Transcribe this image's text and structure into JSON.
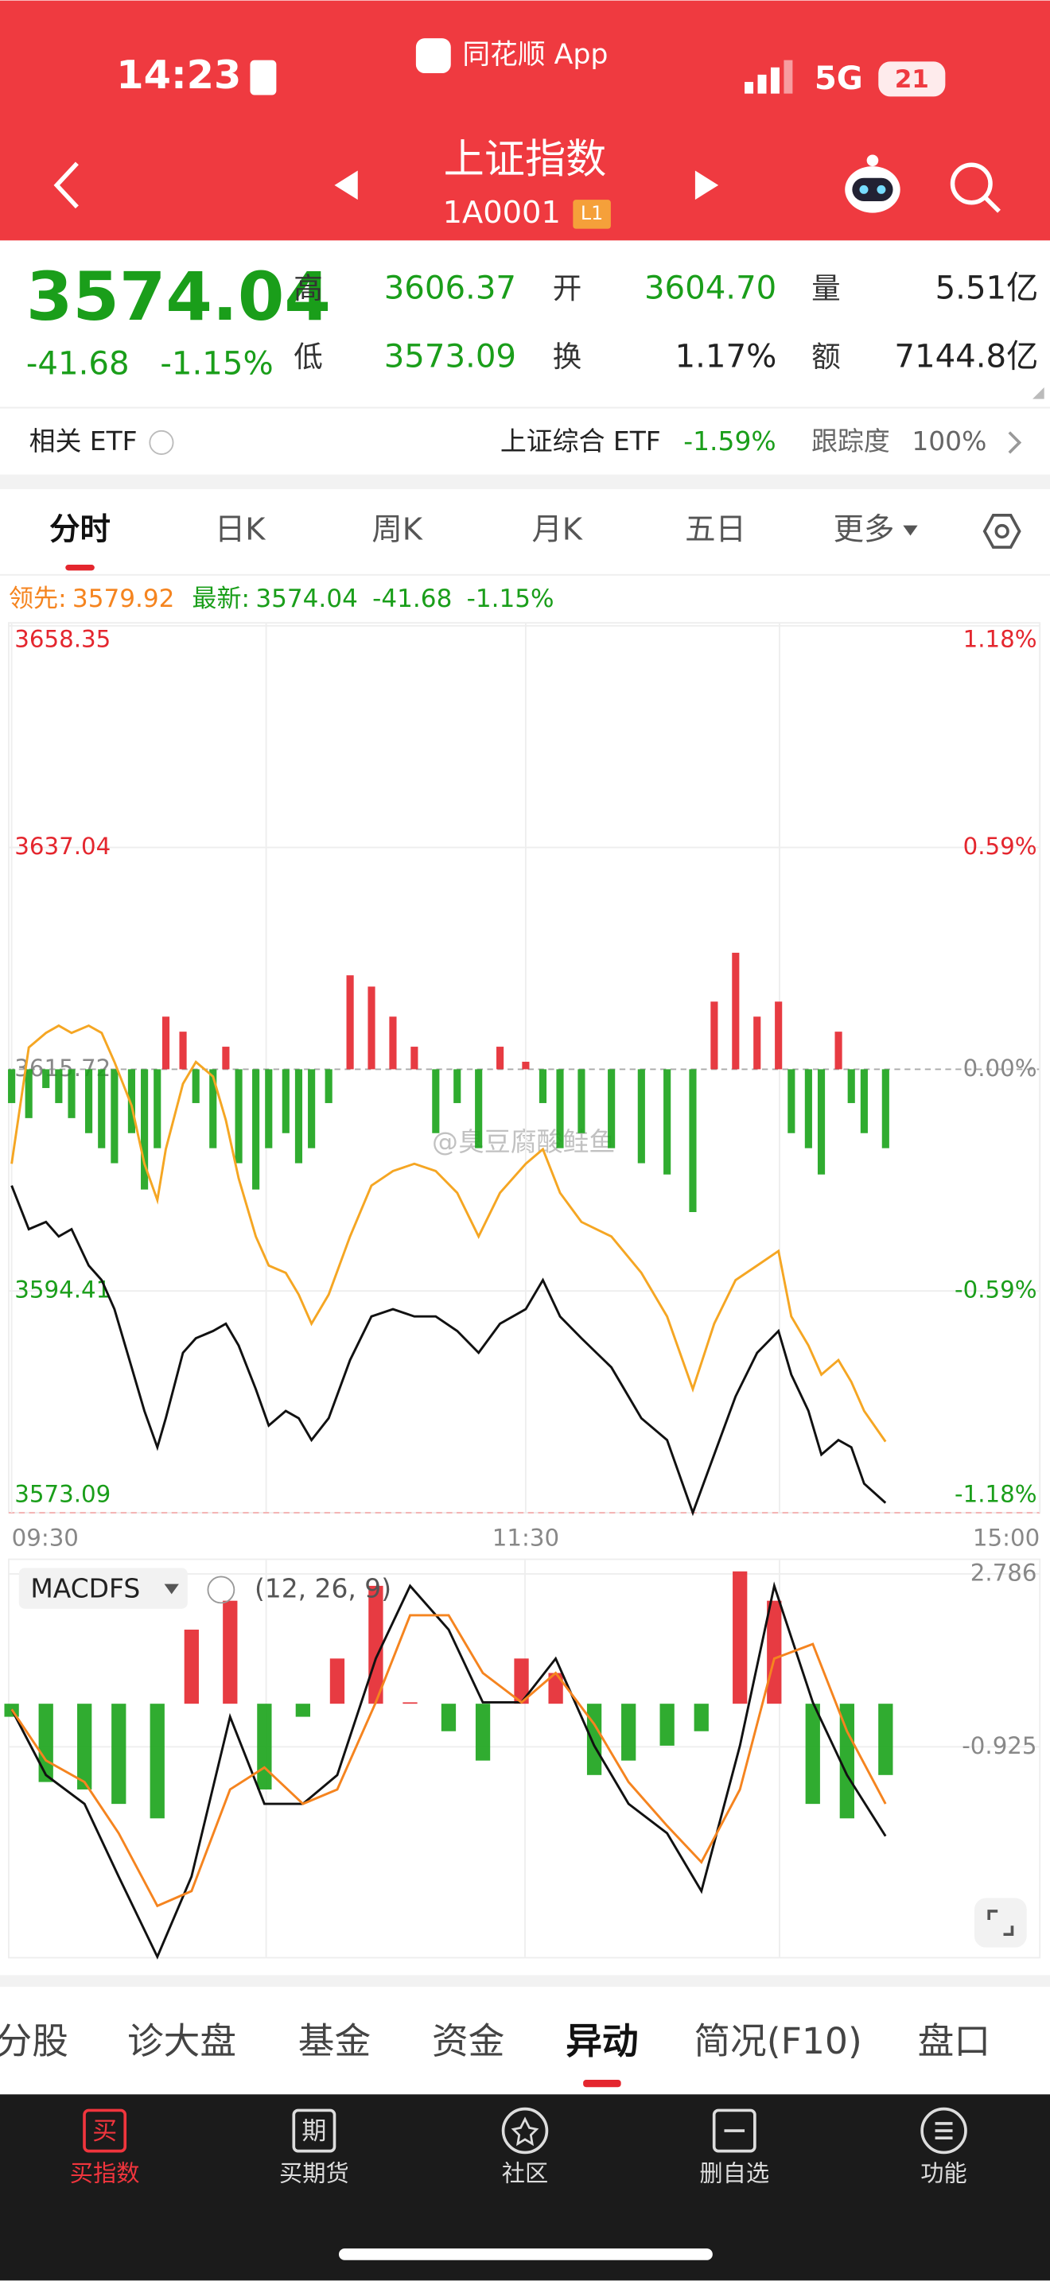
{
  "status": {
    "time": "14:23",
    "app": "同花顺 App",
    "network": "5G",
    "battery": "21"
  },
  "header": {
    "title": "上证指数",
    "code": "1A0001",
    "badge": "L1"
  },
  "quote": {
    "price": "3574.04",
    "change": "-41.68",
    "pct": "-1.15%",
    "color": "#1a9e1a",
    "fields": [
      {
        "label": "高",
        "value": "3606.37",
        "color": "#1a9e1a"
      },
      {
        "label": "开",
        "value": "3604.70",
        "color": "#1a9e1a"
      },
      {
        "label": "量",
        "value": "5.51亿",
        "color": "#222222"
      },
      {
        "label": "低",
        "value": "3573.09",
        "color": "#1a9e1a"
      },
      {
        "label": "换",
        "value": "1.17%",
        "color": "#222222"
      },
      {
        "label": "额",
        "value": "7144.8亿",
        "color": "#222222"
      }
    ]
  },
  "etf": {
    "label": "相关 ETF",
    "name": "上证综合 ETF",
    "pct": "-1.59%",
    "track_label": "跟踪度",
    "track": "100%"
  },
  "tabs": {
    "items": [
      "分时",
      "日K",
      "周K",
      "月K",
      "五日",
      "更多"
    ],
    "active": 0
  },
  "legend": {
    "lead_label": "领先:",
    "lead": "3579.92",
    "latest_label": "最新:",
    "latest": "3574.04",
    "change": "-41.68",
    "pct": "-1.15%"
  },
  "chart_data": [
    {
      "type": "line",
      "x": [
        0,
        4,
        8,
        11,
        14,
        18,
        21,
        24,
        28,
        31,
        34,
        36,
        40,
        43,
        47,
        50,
        53,
        57,
        60,
        64,
        67,
        70,
        74,
        79,
        84,
        89,
        94,
        99,
        104,
        109,
        114,
        120,
        124,
        128,
        133,
        140,
        147,
        153,
        159,
        164,
        169,
        174,
        179,
        182,
        186,
        189,
        193,
        196,
        199,
        204
      ],
      "xlim": [
        0,
        240
      ],
      "xticks": [
        {
          "value": 0,
          "label": "09:30"
        },
        {
          "value": 120,
          "label": "11:30"
        },
        {
          "value": 240,
          "label": "15:00"
        }
      ],
      "ylim": [
        3573.09,
        3658.35
      ],
      "yticks": [
        3658.35,
        3637.04,
        3615.72,
        3594.41,
        3573.09
      ],
      "y2lim": [
        -1.18,
        1.18
      ],
      "y2ticks": [
        {
          "value": 1.18,
          "label": "1.18%"
        },
        {
          "value": 0.59,
          "label": "0.59%"
        },
        {
          "value": 0,
          "label": "0.00%"
        },
        {
          "value": -0.59,
          "label": "-0.59%"
        },
        {
          "value": -1.18,
          "label": "-1.18%"
        }
      ],
      "series": [
        {
          "type": "bar",
          "axis": "y2",
          "up_color": "#e4262e",
          "down_color": "#1aa31a",
          "values": [
            -0.09,
            -0.13,
            -0.05,
            -0.09,
            -0.13,
            -0.17,
            -0.21,
            -0.25,
            -0.17,
            -0.32,
            -0.21,
            0.14,
            0.1,
            -0.09,
            -0.21,
            0.06,
            -0.25,
            -0.32,
            -0.21,
            -0.17,
            -0.25,
            -0.21,
            -0.09,
            0.25,
            0.22,
            0.14,
            0.06,
            -0.17,
            -0.09,
            -0.21,
            0.06,
            0.02,
            -0.09,
            -0.21,
            -0.17,
            -0.21,
            -0.25,
            -0.28,
            -0.38,
            0.18,
            0.31,
            0.14,
            0.18,
            -0.17,
            -0.21,
            -0.28,
            0.1,
            -0.09,
            -0.17,
            -0.21
          ]
        },
        {
          "color": "#f5a623",
          "values": [
            3606.64,
            3617.82,
            3619.21,
            3619.91,
            3619.21,
            3619.91,
            3619.21,
            3616.42,
            3612.23,
            3606.64,
            3603.14,
            3608.03,
            3614.32,
            3616.42,
            3615.02,
            3610.83,
            3605.24,
            3599.65,
            3596.85,
            3596.15,
            3594.06,
            3591.26,
            3594.06,
            3599.65,
            3604.54,
            3605.94,
            3606.64,
            3605.94,
            3603.84,
            3599.65,
            3603.84,
            3606.64,
            3608.03,
            3603.84,
            3601.04,
            3599.65,
            3596.15,
            3591.96,
            3584.97,
            3591.26,
            3595.45,
            3596.85,
            3598.25,
            3591.96,
            3589.16,
            3586.37,
            3587.77,
            3585.67,
            3582.87,
            3579.92
          ]
        },
        {
          "color": "#111111",
          "values": [
            3604.54,
            3600.35,
            3601.04,
            3599.65,
            3600.35,
            3596.85,
            3595.45,
            3592.66,
            3587.07,
            3582.87,
            3579.38,
            3582.18,
            3588.46,
            3589.86,
            3590.56,
            3591.26,
            3589.16,
            3584.97,
            3581.48,
            3582.87,
            3582.18,
            3580.08,
            3582.18,
            3587.77,
            3591.96,
            3592.66,
            3591.96,
            3591.96,
            3590.56,
            3588.46,
            3591.26,
            3592.66,
            3595.45,
            3591.96,
            3589.86,
            3587.07,
            3582.18,
            3580.08,
            3573.09,
            3578.68,
            3584.27,
            3588.46,
            3590.56,
            3586.37,
            3582.87,
            3578.68,
            3580.08,
            3579.38,
            3575.89,
            3574.04
          ]
        }
      ]
    },
    {
      "type": "line",
      "title": "MACDFS",
      "params": "(12, 26, 9)",
      "x": [
        0,
        8,
        17,
        25,
        34,
        42,
        51,
        59,
        68,
        76,
        85,
        93,
        102,
        110,
        119,
        127,
        136,
        144,
        153,
        161,
        170,
        178,
        187,
        195,
        204
      ],
      "xlim": [
        0,
        240
      ],
      "ylim": [
        -5.45,
        3.1
      ],
      "yticks": [
        2.786,
        -0.925
      ],
      "series": [
        {
          "type": "bar",
          "up_color": "#e4262e",
          "down_color": "#1aa31a",
          "values": [
            -0.28,
            -1.68,
            -1.84,
            -2.15,
            -2.46,
            1.59,
            2.21,
            -1.84,
            -0.28,
            0.97,
            2.53,
            0.03,
            -0.59,
            -1.22,
            0.97,
            0.66,
            -1.53,
            -1.22,
            -0.9,
            -0.59,
            2.84,
            2.21,
            -2.15,
            -2.46,
            -1.53
          ]
        },
        {
          "color": "#111111",
          "values": [
            -0.12,
            -1.53,
            -2.15,
            -3.71,
            -5.43,
            -3.71,
            -0.28,
            -2.15,
            -2.15,
            -1.53,
            0.97,
            2.53,
            1.59,
            0.03,
            0.03,
            0.97,
            -0.9,
            -2.15,
            -2.78,
            -4.02,
            -0.9,
            2.53,
            0.03,
            -1.53,
            -2.84
          ]
        },
        {
          "color": "#f5841f",
          "values": [
            -0.12,
            -1.22,
            -1.68,
            -2.78,
            -4.34,
            -4.02,
            -1.84,
            -1.37,
            -2.15,
            -1.84,
            0.03,
            1.9,
            1.9,
            0.66,
            0.03,
            0.66,
            -0.44,
            -1.68,
            -2.62,
            -3.4,
            -1.84,
            0.97,
            1.28,
            -0.59,
            -2.15
          ]
        }
      ]
    }
  ],
  "bottom_tabs": {
    "items": [
      "分股",
      "诊大盘",
      "基金",
      "资金",
      "异动",
      "简况(F10)",
      "盘口"
    ],
    "active": 4
  },
  "nav": [
    {
      "icon": "买",
      "label": "买指数"
    },
    {
      "icon": "期",
      "label": "买期货"
    },
    {
      "label": "社区"
    },
    {
      "label": "删自选"
    },
    {
      "label": "功能"
    }
  ],
  "watermark": "@臭豆腐酸鲑鱼"
}
